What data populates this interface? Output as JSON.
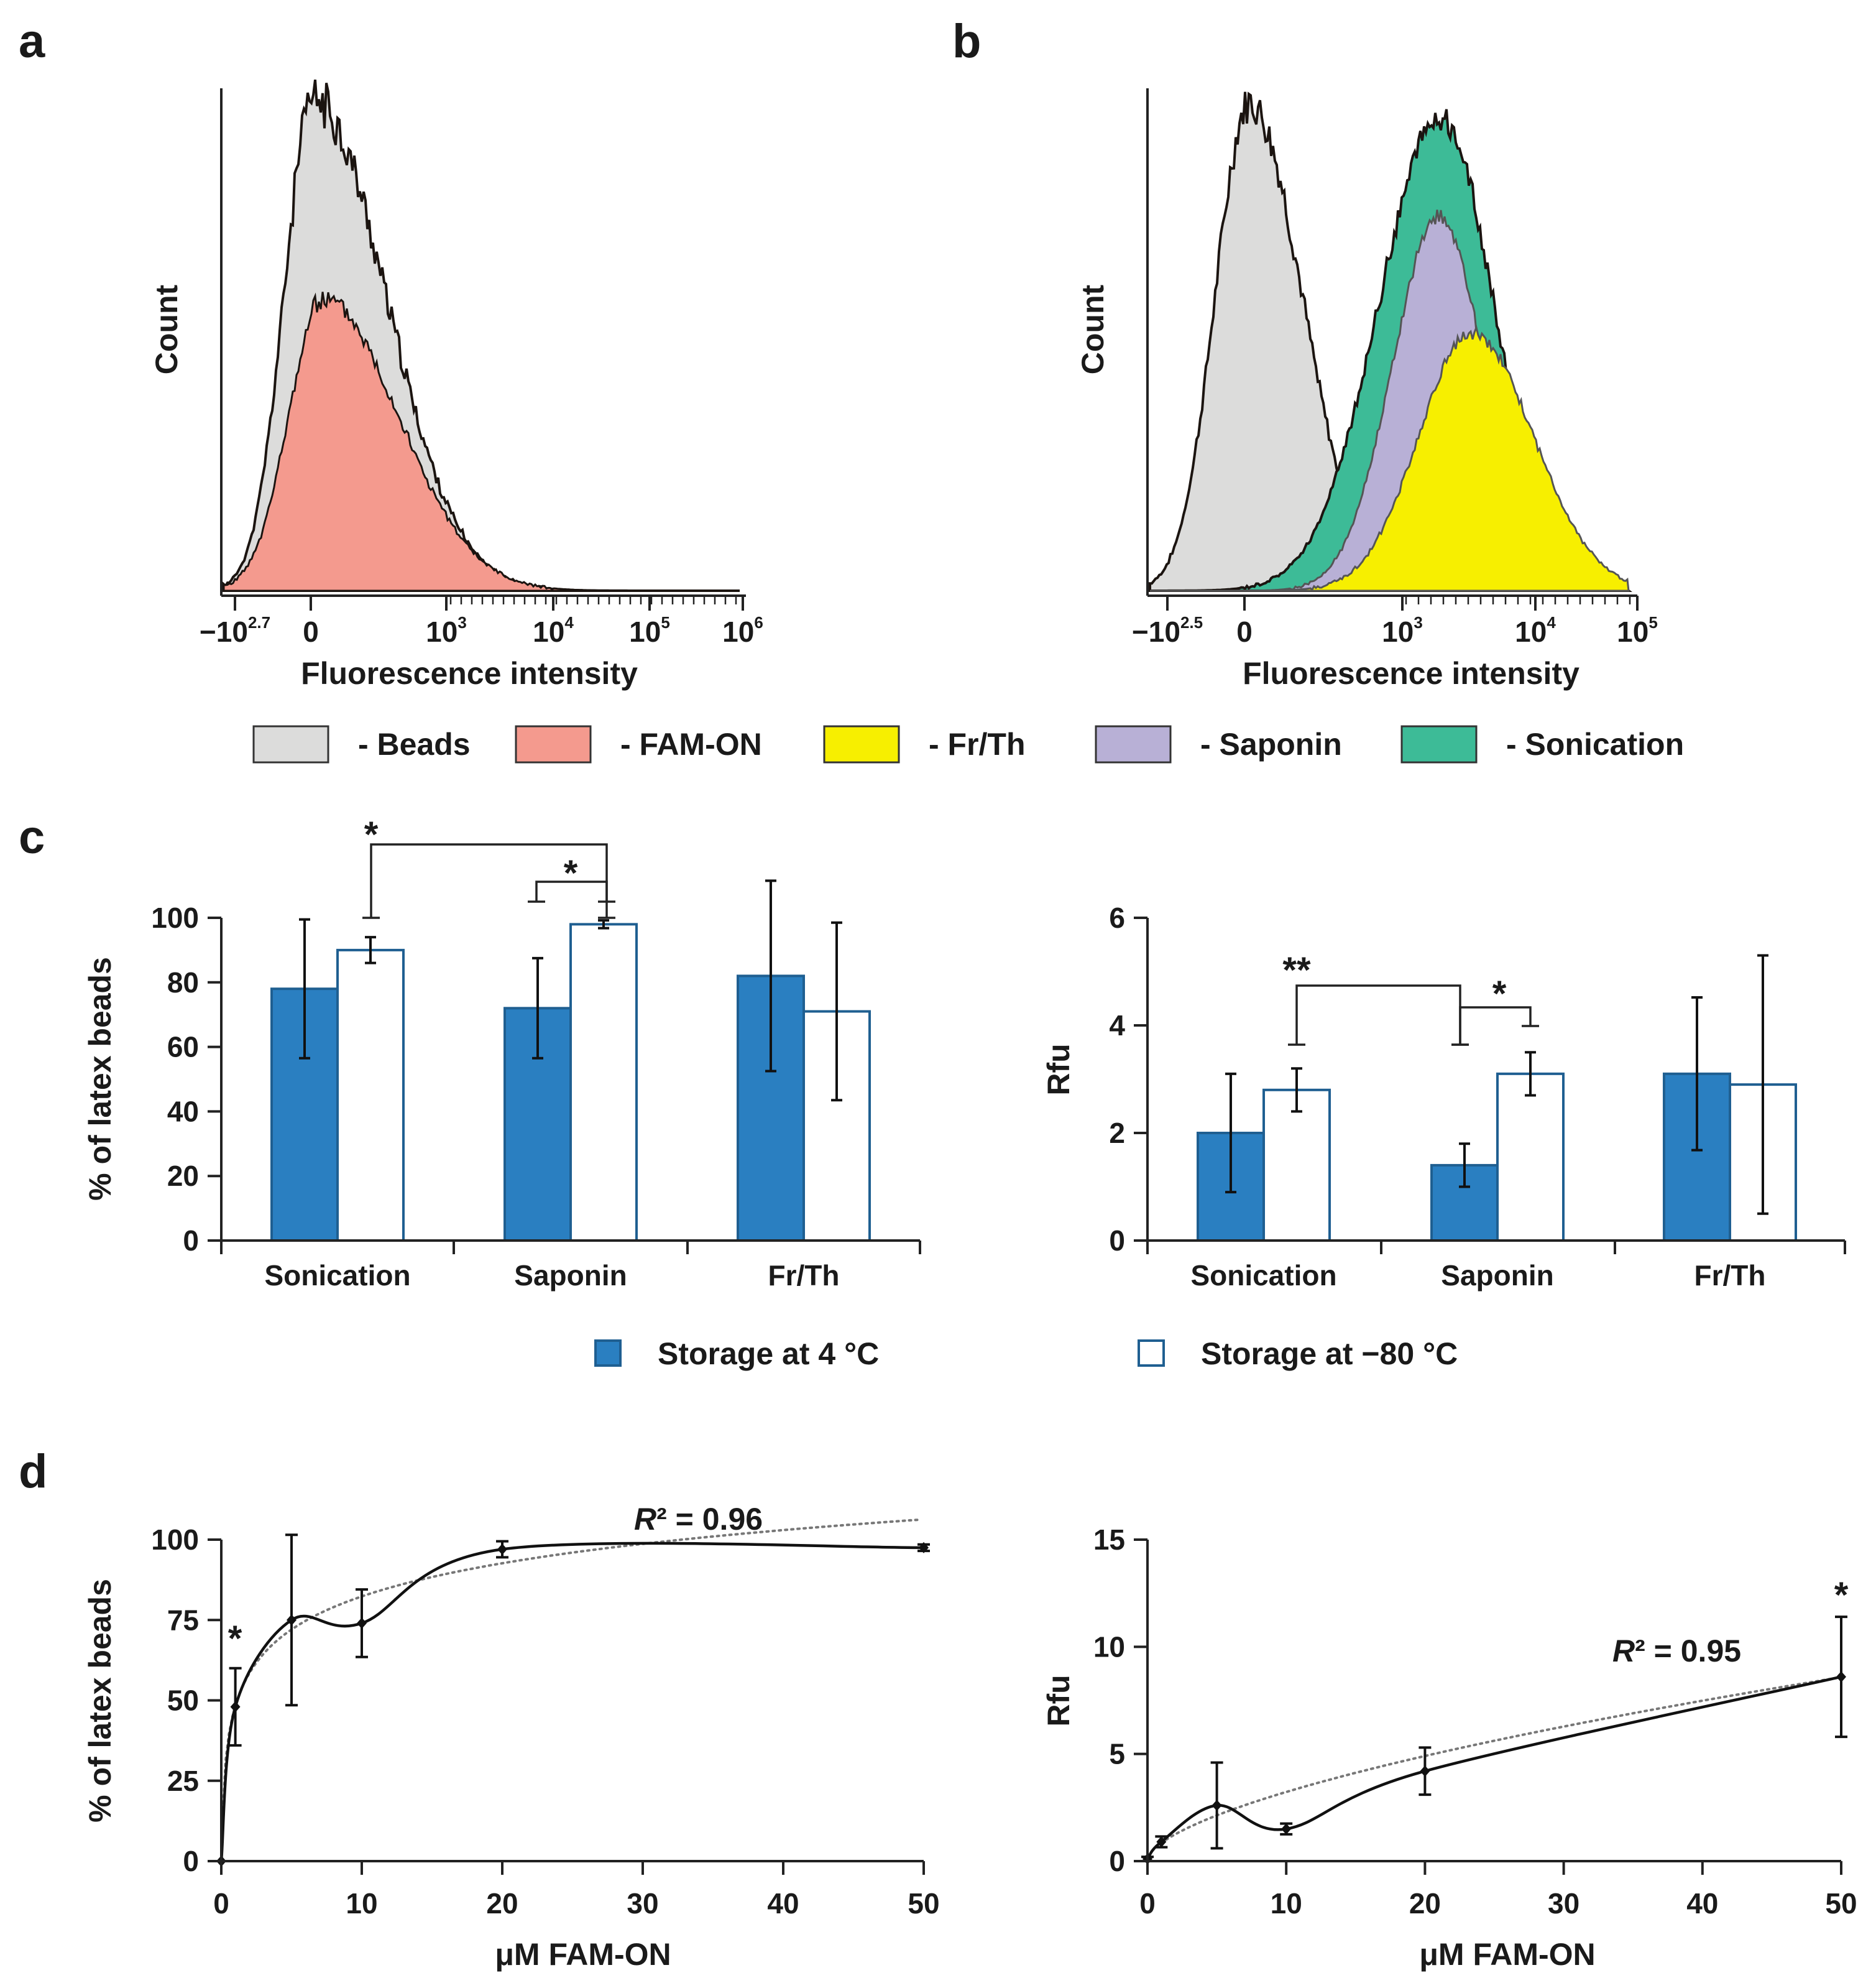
{
  "panel_labels": {
    "a": "a",
    "b": "b",
    "c": "c",
    "d": "d"
  },
  "legend_top": [
    {
      "label": "- Beads",
      "color": "#dcdcdb"
    },
    {
      "label": "- FAM-ON",
      "color": "#f49a8e"
    },
    {
      "label": "- Fr/Th",
      "color": "#f7ef00"
    },
    {
      "label": "- Saponin",
      "color": "#b8b0d6"
    },
    {
      "label": "- Sonication",
      "color": "#3dbb97"
    }
  ],
  "legend_c": [
    {
      "label": "Storage at 4 °C",
      "fill": "#2a7fc1"
    },
    {
      "label": "Storage at −80 °C",
      "fill": "#ffffff"
    }
  ],
  "chart_data": [
    {
      "id": "a",
      "type": "area",
      "title": "",
      "xlabel": "Fluorescence intensity",
      "ylabel": "Count",
      "x_ticks": [
        {
          "base": "−10",
          "exp": "2.7"
        },
        {
          "base": "0",
          "exp": ""
        },
        {
          "base": "10",
          "exp": "3"
        },
        {
          "base": "10",
          "exp": "4"
        },
        {
          "base": "10",
          "exp": "5"
        },
        {
          "base": "10",
          "exp": "6"
        }
      ],
      "series": [
        {
          "name": "Beads",
          "color": "#dcdcdb",
          "peak_x": 0.15,
          "relative_height": 1.0
        },
        {
          "name": "FAM-ON",
          "color": "#f49a8e",
          "peak_x": 0.22,
          "relative_height": 0.59
        }
      ]
    },
    {
      "id": "b",
      "type": "area",
      "title": "",
      "xlabel": "Fluorescence intensity",
      "ylabel": "Count",
      "x_ticks": [
        {
          "base": "−10",
          "exp": "2.5"
        },
        {
          "base": "0",
          "exp": ""
        },
        {
          "base": "10",
          "exp": "3"
        },
        {
          "base": "10",
          "exp": "4"
        },
        {
          "base": "10",
          "exp": "5"
        }
      ],
      "series": [
        {
          "name": "Beads",
          "color": "#dcdcdb",
          "peak_x": 0.25,
          "relative_height": 1.0
        },
        {
          "name": "Sonication",
          "color": "#3dbb97",
          "peak_x": 2.3,
          "relative_height": 0.97
        },
        {
          "name": "Saponin",
          "color": "#b8b0d6",
          "peak_x": 2.27,
          "relative_height": 0.78
        },
        {
          "name": "Fr/Th",
          "color": "#f7ef00",
          "peak_x": 2.5,
          "relative_height": 0.52
        }
      ]
    },
    {
      "id": "c-left",
      "type": "bar",
      "xlabel": "",
      "ylabel": "% of latex beads",
      "ylim": [
        0,
        100
      ],
      "yticks": [
        "0",
        "20",
        "40",
        "60",
        "80",
        "100"
      ],
      "categories": [
        "Sonication",
        "Saponin",
        "Fr/Th"
      ],
      "series": [
        {
          "name": "Storage at 4 °C",
          "values": [
            78,
            72,
            82
          ],
          "err": [
            21.5,
            15.5,
            29.5
          ]
        },
        {
          "name": "Storage at −80 °C",
          "values": [
            90,
            98,
            71
          ],
          "err": [
            4,
            1.2,
            27.5
          ]
        }
      ],
      "annotations": [
        {
          "text": "*",
          "between": [
            "Sonication −80 °C",
            "Saponin −80 °C"
          ]
        },
        {
          "text": "*",
          "between": [
            "Saponin 4 °C",
            "Saponin −80 °C"
          ]
        }
      ]
    },
    {
      "id": "c-right",
      "type": "bar",
      "xlabel": "",
      "ylabel": "Rfu",
      "ylim": [
        0,
        6
      ],
      "yticks": [
        "0",
        "2",
        "4",
        "6"
      ],
      "categories": [
        "Sonication",
        "Saponin",
        "Fr/Th"
      ],
      "series": [
        {
          "name": "Storage at 4 °C",
          "values": [
            2.0,
            1.4,
            3.1
          ],
          "err": [
            1.1,
            0.4,
            1.42
          ]
        },
        {
          "name": "Storage at −80 °C",
          "values": [
            2.8,
            3.1,
            2.9
          ],
          "err": [
            0.4,
            0.4,
            2.4
          ]
        }
      ],
      "annotations": [
        {
          "text": "**",
          "between": [
            "Sonication −80 °C",
            "Saponin 4 °C"
          ]
        },
        {
          "text": "*",
          "between": [
            "Saponin 4 °C",
            "Saponin −80 °C"
          ]
        }
      ]
    },
    {
      "id": "d-left",
      "type": "line",
      "xlabel": "μM FAM-ON",
      "ylabel": "% of latex beads",
      "xlim": [
        0,
        50
      ],
      "ylim": [
        0,
        100
      ],
      "xticks": [
        "0",
        "10",
        "20",
        "30",
        "40",
        "50"
      ],
      "yticks": [
        "0",
        "25",
        "50",
        "75",
        "100"
      ],
      "x": [
        0,
        1,
        5,
        10,
        20,
        50
      ],
      "y": [
        0,
        48,
        75,
        74,
        97,
        97.5
      ],
      "err": [
        0,
        12,
        26.5,
        10.5,
        2.5,
        1
      ],
      "fit": {
        "type": "log",
        "style": "dotted"
      },
      "r2_label": "R",
      "r2_value": "² = 0.96",
      "annotations": [
        {
          "text": "*",
          "at_x": 1
        }
      ]
    },
    {
      "id": "d-right",
      "type": "line",
      "xlabel": "μM FAM-ON",
      "ylabel": "Rfu",
      "xlim": [
        0,
        50
      ],
      "ylim": [
        0,
        15
      ],
      "xticks": [
        "0",
        "10",
        "20",
        "30",
        "40",
        "50"
      ],
      "yticks": [
        "0",
        "5",
        "10",
        "15"
      ],
      "x": [
        0,
        1,
        5,
        10,
        20,
        50
      ],
      "y": [
        0.1,
        0.9,
        2.6,
        1.5,
        4.2,
        8.6
      ],
      "err": [
        0.1,
        0.25,
        2.0,
        0.25,
        1.1,
        2.8
      ],
      "fit": {
        "type": "power",
        "style": "dotted"
      },
      "r2_label": "R",
      "r2_value": "² = 0.95",
      "annotations": [
        {
          "text": "*",
          "at_x": 50
        }
      ]
    }
  ]
}
